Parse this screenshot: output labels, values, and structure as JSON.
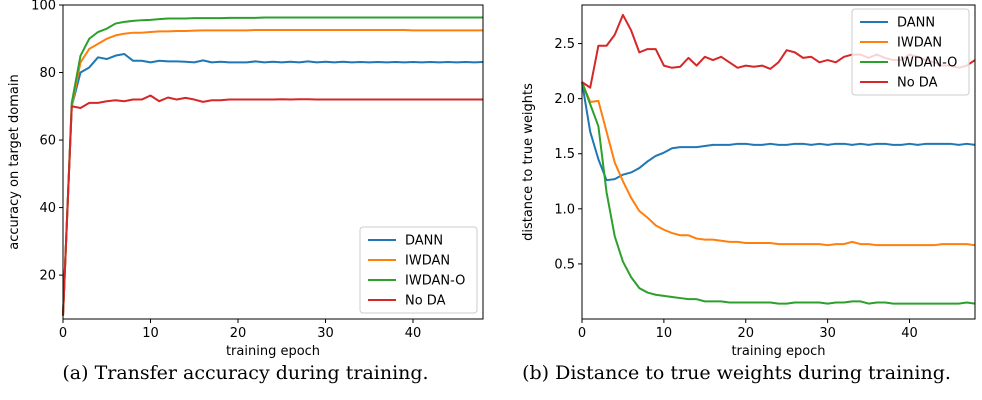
{
  "chart_data": [
    {
      "type": "line",
      "xlabel": "training epoch",
      "ylabel": "accuracy on target domain",
      "xlim": [
        0,
        48
      ],
      "ylim": [
        7,
        100
      ],
      "xticks": [
        0,
        10,
        20,
        30,
        40
      ],
      "yticks": [
        20,
        40,
        60,
        80,
        100
      ],
      "grid": false,
      "legend": "lower-right",
      "caption": "(a) Transfer accuracy during training.",
      "series": [
        {
          "name": "DANN",
          "color": "#1f77b4",
          "x": [
            0,
            1,
            2,
            3,
            4,
            5,
            6,
            7,
            8,
            9,
            10,
            11,
            12,
            13,
            14,
            15,
            16,
            17,
            18,
            19,
            20,
            21,
            22,
            23,
            24,
            25,
            26,
            27,
            28,
            29,
            30,
            31,
            32,
            33,
            34,
            35,
            36,
            37,
            38,
            39,
            40,
            41,
            42,
            43,
            44,
            45,
            46,
            47,
            48
          ],
          "values": [
            8,
            70,
            80,
            81.5,
            84.5,
            84,
            85,
            85.5,
            83.5,
            83.5,
            83,
            83.5,
            83.3,
            83.3,
            83.2,
            83,
            83.6,
            83,
            83.2,
            83,
            83,
            83,
            83.3,
            83,
            83.2,
            83,
            83.2,
            83,
            83.3,
            83,
            83.2,
            83,
            83.2,
            83,
            83.1,
            83,
            83.1,
            83,
            83.1,
            83,
            83.1,
            83,
            83.1,
            83,
            83.1,
            83,
            83.1,
            83,
            83.1
          ]
        },
        {
          "name": "IWDAN",
          "color": "#ff7f0e",
          "x": [
            0,
            1,
            2,
            3,
            4,
            5,
            6,
            7,
            8,
            9,
            10,
            11,
            12,
            13,
            14,
            15,
            16,
            17,
            18,
            19,
            20,
            21,
            22,
            23,
            24,
            25,
            26,
            27,
            28,
            29,
            30,
            31,
            32,
            33,
            34,
            35,
            36,
            37,
            38,
            39,
            40,
            41,
            42,
            43,
            44,
            45,
            46,
            47,
            48
          ],
          "values": [
            8,
            70,
            83,
            87,
            88.5,
            90,
            91,
            91.5,
            91.8,
            91.8,
            92,
            92.2,
            92.2,
            92.3,
            92.3,
            92.4,
            92.5,
            92.5,
            92.5,
            92.5,
            92.5,
            92.5,
            92.6,
            92.6,
            92.6,
            92.6,
            92.6,
            92.6,
            92.6,
            92.6,
            92.6,
            92.6,
            92.6,
            92.6,
            92.6,
            92.6,
            92.6,
            92.6,
            92.6,
            92.6,
            92.5,
            92.5,
            92.5,
            92.5,
            92.5,
            92.5,
            92.5,
            92.5,
            92.5
          ]
        },
        {
          "name": "IWDAN-O",
          "color": "#2ca02c",
          "x": [
            0,
            1,
            2,
            3,
            4,
            5,
            6,
            7,
            8,
            9,
            10,
            11,
            12,
            13,
            14,
            15,
            16,
            17,
            18,
            19,
            20,
            21,
            22,
            23,
            24,
            25,
            26,
            27,
            28,
            29,
            30,
            31,
            32,
            33,
            34,
            35,
            36,
            37,
            38,
            39,
            40,
            41,
            42,
            43,
            44,
            45,
            46,
            47,
            48
          ],
          "values": [
            8,
            71,
            85,
            90,
            92,
            93,
            94.5,
            95,
            95.3,
            95.5,
            95.6,
            95.8,
            96,
            96,
            96,
            96.1,
            96.1,
            96.1,
            96.1,
            96.2,
            96.2,
            96.2,
            96.2,
            96.3,
            96.3,
            96.3,
            96.3,
            96.3,
            96.3,
            96.3,
            96.3,
            96.3,
            96.3,
            96.3,
            96.3,
            96.3,
            96.3,
            96.3,
            96.3,
            96.3,
            96.3,
            96.3,
            96.3,
            96.3,
            96.3,
            96.3,
            96.3,
            96.3,
            96.3
          ]
        },
        {
          "name": "No DA",
          "color": "#d62728",
          "x": [
            0,
            1,
            2,
            3,
            4,
            5,
            6,
            7,
            8,
            9,
            10,
            11,
            12,
            13,
            14,
            15,
            16,
            17,
            18,
            19,
            20,
            21,
            22,
            23,
            24,
            25,
            26,
            27,
            28,
            29,
            30,
            31,
            32,
            33,
            34,
            35,
            36,
            37,
            38,
            39,
            40,
            41,
            42,
            43,
            44,
            45,
            46,
            47,
            48
          ],
          "values": [
            8,
            70,
            69.5,
            71,
            71,
            71.5,
            71.8,
            71.5,
            72,
            72,
            73.2,
            71.5,
            72.6,
            72,
            72.5,
            72,
            71.3,
            71.8,
            71.8,
            72,
            72,
            72,
            72,
            72,
            72,
            72.1,
            72,
            72.1,
            72.1,
            72,
            72,
            72,
            72,
            72,
            72,
            72,
            72,
            72,
            72,
            72,
            72,
            72,
            72,
            72,
            72,
            72,
            72,
            72,
            72
          ]
        }
      ]
    },
    {
      "type": "line",
      "xlabel": "training epoch",
      "ylabel": "distance to true weights",
      "xlim": [
        0,
        48
      ],
      "ylim": [
        0,
        2.85
      ],
      "xticks": [
        0,
        10,
        20,
        30,
        40
      ],
      "yticks": [
        0.5,
        1.0,
        1.5,
        2.0,
        2.5
      ],
      "yticklabels": [
        "0.5",
        "1.0",
        "1.5",
        "2.0",
        "2.5"
      ],
      "grid": false,
      "legend": "top-right",
      "caption": "(b) Distance to true weights during training.",
      "series": [
        {
          "name": "DANN",
          "color": "#1f77b4",
          "x": [
            0,
            1,
            2,
            3,
            4,
            5,
            6,
            7,
            8,
            9,
            10,
            11,
            12,
            13,
            14,
            15,
            16,
            17,
            18,
            19,
            20,
            21,
            22,
            23,
            24,
            25,
            26,
            27,
            28,
            29,
            30,
            31,
            32,
            33,
            34,
            35,
            36,
            37,
            38,
            39,
            40,
            41,
            42,
            43,
            44,
            45,
            46,
            47,
            48
          ],
          "values": [
            2.15,
            1.7,
            1.45,
            1.26,
            1.27,
            1.31,
            1.33,
            1.37,
            1.43,
            1.48,
            1.51,
            1.55,
            1.56,
            1.56,
            1.56,
            1.57,
            1.58,
            1.58,
            1.58,
            1.59,
            1.59,
            1.58,
            1.58,
            1.59,
            1.58,
            1.58,
            1.59,
            1.59,
            1.58,
            1.59,
            1.58,
            1.59,
            1.59,
            1.58,
            1.59,
            1.58,
            1.59,
            1.59,
            1.58,
            1.58,
            1.59,
            1.58,
            1.59,
            1.59,
            1.59,
            1.59,
            1.58,
            1.59,
            1.58
          ]
        },
        {
          "name": "IWDAN",
          "color": "#ff7f0e",
          "x": [
            0,
            1,
            2,
            3,
            4,
            5,
            6,
            7,
            8,
            9,
            10,
            11,
            12,
            13,
            14,
            15,
            16,
            17,
            18,
            19,
            20,
            21,
            22,
            23,
            24,
            25,
            26,
            27,
            28,
            29,
            30,
            31,
            32,
            33,
            34,
            35,
            36,
            37,
            38,
            39,
            40,
            41,
            42,
            43,
            44,
            45,
            46,
            47,
            48
          ],
          "values": [
            2.15,
            1.97,
            1.98,
            1.7,
            1.42,
            1.25,
            1.1,
            0.98,
            0.92,
            0.85,
            0.81,
            0.78,
            0.76,
            0.76,
            0.73,
            0.72,
            0.72,
            0.71,
            0.7,
            0.7,
            0.69,
            0.69,
            0.69,
            0.69,
            0.68,
            0.68,
            0.68,
            0.68,
            0.68,
            0.68,
            0.67,
            0.68,
            0.68,
            0.7,
            0.68,
            0.68,
            0.67,
            0.67,
            0.67,
            0.67,
            0.67,
            0.67,
            0.67,
            0.67,
            0.68,
            0.68,
            0.68,
            0.68,
            0.67
          ]
        },
        {
          "name": "IWDAN-O",
          "color": "#2ca02c",
          "x": [
            0,
            1,
            2,
            3,
            4,
            5,
            6,
            7,
            8,
            9,
            10,
            11,
            12,
            13,
            14,
            15,
            16,
            17,
            18,
            19,
            20,
            21,
            22,
            23,
            24,
            25,
            26,
            27,
            28,
            29,
            30,
            31,
            32,
            33,
            34,
            35,
            36,
            37,
            38,
            39,
            40,
            41,
            42,
            43,
            44,
            45,
            46,
            47,
            48
          ],
          "values": [
            2.15,
            1.95,
            1.75,
            1.15,
            0.75,
            0.52,
            0.38,
            0.28,
            0.24,
            0.22,
            0.21,
            0.2,
            0.19,
            0.18,
            0.18,
            0.16,
            0.16,
            0.16,
            0.15,
            0.15,
            0.15,
            0.15,
            0.15,
            0.15,
            0.14,
            0.14,
            0.15,
            0.15,
            0.15,
            0.15,
            0.14,
            0.15,
            0.15,
            0.16,
            0.16,
            0.14,
            0.15,
            0.15,
            0.14,
            0.14,
            0.14,
            0.14,
            0.14,
            0.14,
            0.14,
            0.14,
            0.14,
            0.15,
            0.14
          ]
        },
        {
          "name": "No DA",
          "color": "#d62728",
          "x": [
            0,
            1,
            2,
            3,
            4,
            5,
            6,
            7,
            8,
            9,
            10,
            11,
            12,
            13,
            14,
            15,
            16,
            17,
            18,
            19,
            20,
            21,
            22,
            23,
            24,
            25,
            26,
            27,
            28,
            29,
            30,
            31,
            32,
            33,
            34,
            35,
            36,
            37,
            38,
            39,
            40,
            41,
            42,
            43,
            44,
            45,
            46,
            47,
            48
          ],
          "values": [
            2.15,
            2.1,
            2.48,
            2.48,
            2.58,
            2.76,
            2.62,
            2.42,
            2.45,
            2.45,
            2.3,
            2.28,
            2.29,
            2.37,
            2.3,
            2.38,
            2.35,
            2.38,
            2.33,
            2.28,
            2.3,
            2.29,
            2.3,
            2.27,
            2.33,
            2.44,
            2.42,
            2.37,
            2.38,
            2.33,
            2.35,
            2.33,
            2.38,
            2.4,
            2.4,
            2.37,
            2.4,
            2.37,
            2.35,
            2.35,
            2.4,
            2.38,
            2.35,
            2.33,
            2.3,
            2.3,
            2.28,
            2.3,
            2.35
          ]
        }
      ]
    }
  ]
}
